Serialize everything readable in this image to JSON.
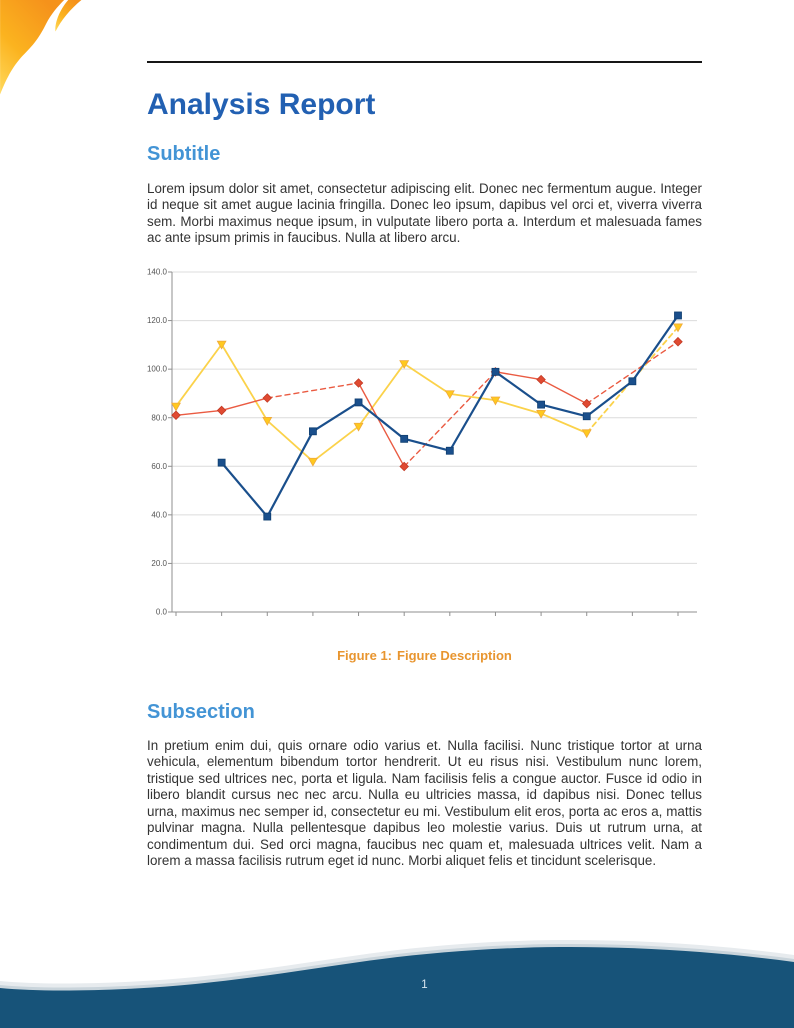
{
  "header": {
    "title": "Analysis Report"
  },
  "sections": [
    {
      "heading": "Subtitle",
      "body": "Lorem ipsum dolor sit amet, consectetur adipiscing elit. Donec nec fermentum augue. Integer id neque sit amet augue lacinia fringilla. Donec leo ipsum, dapibus vel orci et, viverra viverra sem. Morbi maximus neque ipsum, in vulputate libero porta a. Interdum et malesuada fames ac ante ipsum primis in faucibus. Nulla at libero arcu."
    },
    {
      "heading": "Subsection",
      "body": "In pretium enim dui, quis ornare odio varius et. Nulla facilisi. Nunc tristique tortor at urna vehicula, elementum bibendum tortor hendrerit. Ut eu risus nisi. Vestibulum nunc lorem, tristique sed ultrices nec, porta et ligula. Nam facilisis felis a congue auctor. Fusce id odio in libero blandit cursus nec nec arcu. Nulla eu ultricies massa, id dapibus nisi. Donec tellus urna, maximus nec semper id, consectetur eu mi. Vestibulum elit eros, porta ac eros a, mattis pulvinar magna. Nulla pellentesque dapibus leo molestie varius. Duis ut rutrum urna, at condimentum dui. Sed orci magna, faucibus nec quam et, malesuada ultrices velit. Nam a lorem a massa facilisis rutrum eget id nunc. Morbi aliquet felis et tincidunt scelerisque."
    }
  ],
  "figure": {
    "caption_label": "Figure 1:",
    "caption_text": "Figure Description"
  },
  "chart_data": {
    "type": "line",
    "title": "",
    "xlabel": "",
    "ylabel": "",
    "x": [
      1,
      2,
      3,
      4,
      5,
      6,
      7,
      8,
      9,
      10,
      11,
      12
    ],
    "xtick_labels": [],
    "ylim": [
      0,
      140
    ],
    "yticks": [
      0,
      20,
      40,
      60,
      80,
      100,
      120,
      140
    ],
    "ytick_labels": [
      "0.0",
      "20.0",
      "40.0",
      "60.0",
      "80.0",
      "100.0",
      "120.0",
      "140.0"
    ],
    "grid": "horizontal-only",
    "legend": "none",
    "missing_points_rendered": "gaps bridged with dashed interpolation segments",
    "series": [
      {
        "name": "yellow-triangles",
        "color": "#FBD24A",
        "marker_color": "#FFC91E",
        "edge_color": "#EFA93C",
        "marker": "triangle-down",
        "line_width": 1.8,
        "values": [
          84.7,
          110.2,
          78.8,
          62.0,
          76.4,
          102.2,
          89.8,
          87.2,
          81.7,
          73.7,
          null,
          117.3
        ]
      },
      {
        "name": "red-diamonds",
        "color": "#EA5B42",
        "marker_color": "#E04A32",
        "edge_color": "#C23A24",
        "marker": "diamond",
        "line_width": 1.4,
        "values": [
          81.0,
          83.0,
          88.1,
          null,
          94.3,
          59.9,
          null,
          98.9,
          95.7,
          85.8,
          null,
          111.3
        ]
      },
      {
        "name": "blue-squares",
        "color": "#1A4F8C",
        "marker_color": "#1A4F8C",
        "edge_color": "#0F3E70",
        "marker": "square",
        "line_width": 2.2,
        "values": [
          null,
          61.5,
          39.3,
          74.4,
          86.3,
          71.3,
          66.4,
          98.9,
          85.4,
          80.6,
          95.0,
          122.1
        ]
      }
    ]
  },
  "page": {
    "number": "1"
  },
  "colors": {
    "title_blue": "#2260B2",
    "section_blue": "#4394D5",
    "caption_orange": "#E8952F",
    "footer_navy": "#175379",
    "swoosh_orange": "#F5921B",
    "swoosh_mid": "#FBB31F",
    "swoosh_yellow": "#FFD95C",
    "body_text": "#333333",
    "grid_gray": "#DCDCDC",
    "axis_gray": "#8F8F8F"
  }
}
